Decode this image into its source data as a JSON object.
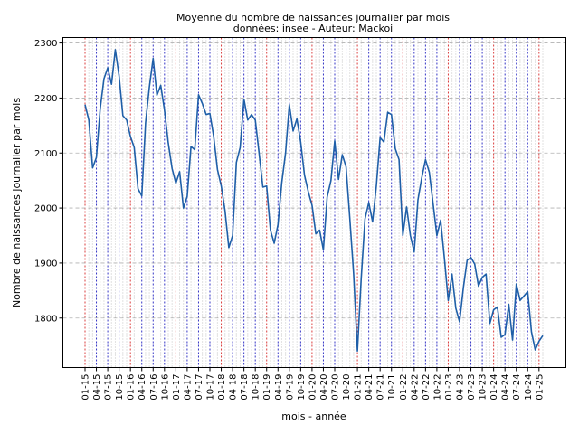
{
  "chart_data": {
    "type": "line",
    "title": "Moyenne du nombre de naissances journalier par mois",
    "subtitle": "données: insee - Auteur: Mackoi",
    "xlabel": "mois - année",
    "ylabel": "Nombre de naissances journalier par mois",
    "ylim": [
      1710,
      2310
    ],
    "yticks": [
      1800,
      1900,
      2000,
      2100,
      2200,
      2300
    ],
    "grid": "horizontal dashed",
    "xtick_labels": [
      "01-15",
      "04-15",
      "07-15",
      "10-15",
      "01-16",
      "04-16",
      "07-16",
      "10-16",
      "01-17",
      "04-17",
      "07-17",
      "10-17",
      "01-18",
      "04-18",
      "07-18",
      "10-18",
      "01-19",
      "04-19",
      "07-19",
      "10-19",
      "01-20",
      "04-20",
      "07-20",
      "10-20",
      "01-21",
      "04-21",
      "07-21",
      "10-21",
      "01-22",
      "04-22",
      "07-22",
      "10-22",
      "01-23",
      "04-23",
      "07-23",
      "10-23",
      "01-24",
      "04-24",
      "07-24",
      "10-24",
      "01-25"
    ],
    "vertical_lines": {
      "january": "#d62728",
      "quarter": "#1f1fbf",
      "month": "#7f7f7f"
    },
    "series": [
      {
        "color": "#1f5fa8",
        "x": [
          "01-15",
          "02-15",
          "03-15",
          "04-15",
          "05-15",
          "06-15",
          "07-15",
          "08-15",
          "09-15",
          "10-15",
          "11-15",
          "12-15",
          "01-16",
          "02-16",
          "03-16",
          "04-16",
          "05-16",
          "06-16",
          "07-16",
          "08-16",
          "09-16",
          "10-16",
          "11-16",
          "12-16",
          "01-17",
          "02-17",
          "03-17",
          "04-17",
          "05-17",
          "06-17",
          "07-17",
          "08-17",
          "09-17",
          "10-17",
          "11-17",
          "12-17",
          "01-18",
          "02-18",
          "03-18",
          "04-18",
          "05-18",
          "06-18",
          "07-18",
          "08-18",
          "09-18",
          "10-18",
          "11-18",
          "12-18",
          "01-19",
          "02-19",
          "03-19",
          "04-19",
          "05-19",
          "06-19",
          "07-19",
          "08-19",
          "09-19",
          "10-19",
          "11-19",
          "12-19",
          "01-20",
          "02-20",
          "03-20",
          "04-20",
          "05-20",
          "06-20",
          "07-20",
          "08-20",
          "09-20",
          "10-20",
          "11-20",
          "12-20",
          "01-21",
          "02-21",
          "03-21",
          "04-21",
          "05-21",
          "06-21",
          "07-21",
          "08-21",
          "09-21",
          "10-21",
          "11-21",
          "12-21",
          "01-22",
          "02-22",
          "03-22",
          "04-22",
          "05-22",
          "06-22",
          "07-22",
          "08-22",
          "09-22",
          "10-22",
          "11-22",
          "12-22",
          "01-23",
          "02-23",
          "03-23",
          "04-23",
          "05-23",
          "06-23",
          "07-23",
          "08-23",
          "09-23",
          "10-23",
          "11-23",
          "12-23",
          "01-24",
          "02-24",
          "03-24",
          "04-24",
          "05-24",
          "06-24",
          "07-24",
          "08-24",
          "09-24",
          "10-24",
          "11-24",
          "12-24",
          "01-25",
          "02-25"
        ],
        "values": [
          2188,
          2160,
          2073,
          2092,
          2180,
          2235,
          2255,
          2225,
          2288,
          2240,
          2168,
          2160,
          2130,
          2110,
          2035,
          2022,
          2155,
          2220,
          2272,
          2205,
          2223,
          2178,
          2118,
          2072,
          2045,
          2066,
          2000,
          2021,
          2112,
          2106,
          2206,
          2190,
          2170,
          2172,
          2130,
          2070,
          2040,
          1995,
          1928,
          1950,
          2083,
          2110,
          2198,
          2160,
          2170,
          2160,
          2100,
          2038,
          2040,
          1960,
          1936,
          1970,
          2046,
          2100,
          2188,
          2140,
          2162,
          2120,
          2060,
          2030,
          2005,
          1953,
          1960,
          1924,
          2020,
          2050,
          2122,
          2052,
          2097,
          2075,
          1980,
          1880,
          1740,
          1872,
          1980,
          2010,
          1975,
          2040,
          2128,
          2120,
          2174,
          2170,
          2108,
          2088,
          1950,
          2002,
          1950,
          1920,
          2015,
          2055,
          2088,
          2065,
          2008,
          1950,
          1978,
          1908,
          1832,
          1880,
          1818,
          1793,
          1855,
          1905,
          1910,
          1898,
          1858,
          1874,
          1880,
          1790,
          1815,
          1820,
          1765,
          1770,
          1825,
          1760,
          1862,
          1832,
          1840,
          1848,
          1775,
          1742,
          1758,
          1768
        ]
      }
    ]
  }
}
